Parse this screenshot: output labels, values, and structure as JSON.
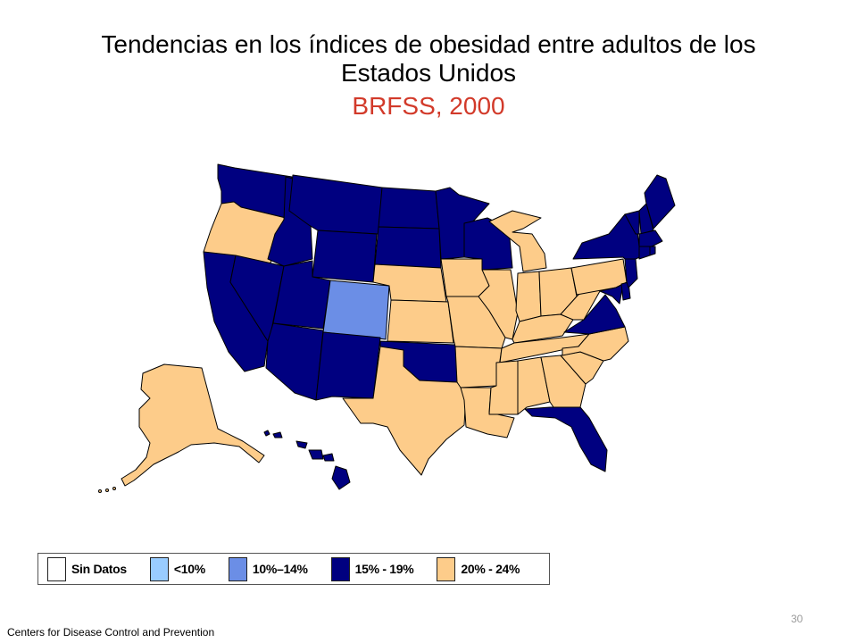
{
  "title": {
    "line1": "Tendencias en los índices de obesidad entre adultos de los",
    "line2": "Estados Unidos",
    "subtitle": "BRFSS, 2000"
  },
  "colors": {
    "no_data": "#ffffff",
    "lt10": "#99ccff",
    "c10_14": "#6b8ee6",
    "c15_19": "#000080",
    "c20_24": "#fdcc8a",
    "subtitle": "#d23a2a",
    "state_border": "#000000"
  },
  "legend": [
    {
      "label": "Sin Datos",
      "category": "no_data"
    },
    {
      "label": "<10%",
      "category": "lt10"
    },
    {
      "label": "10%–14%",
      "category": "c10_14"
    },
    {
      "label": "15% - 19%",
      "category": "c15_19"
    },
    {
      "label": "20% - 24%",
      "category": "c20_24"
    }
  ],
  "states": [
    {
      "code": "WA",
      "category": "c15_19"
    },
    {
      "code": "OR",
      "category": "c20_24"
    },
    {
      "code": "CA",
      "category": "c15_19"
    },
    {
      "code": "NV",
      "category": "c15_19"
    },
    {
      "code": "ID",
      "category": "c15_19"
    },
    {
      "code": "MT",
      "category": "c15_19"
    },
    {
      "code": "WY",
      "category": "c15_19"
    },
    {
      "code": "UT",
      "category": "c15_19"
    },
    {
      "code": "AZ",
      "category": "c15_19"
    },
    {
      "code": "CO",
      "category": "c10_14"
    },
    {
      "code": "NM",
      "category": "c15_19"
    },
    {
      "code": "ND",
      "category": "c15_19"
    },
    {
      "code": "SD",
      "category": "c15_19"
    },
    {
      "code": "NE",
      "category": "c20_24"
    },
    {
      "code": "KS",
      "category": "c20_24"
    },
    {
      "code": "OK",
      "category": "c15_19"
    },
    {
      "code": "TX",
      "category": "c20_24"
    },
    {
      "code": "MN",
      "category": "c15_19"
    },
    {
      "code": "IA",
      "category": "c20_24"
    },
    {
      "code": "MO",
      "category": "c20_24"
    },
    {
      "code": "AR",
      "category": "c20_24"
    },
    {
      "code": "LA",
      "category": "c20_24"
    },
    {
      "code": "WI",
      "category": "c15_19"
    },
    {
      "code": "IL",
      "category": "c20_24"
    },
    {
      "code": "MI",
      "category": "c20_24"
    },
    {
      "code": "IN",
      "category": "c20_24"
    },
    {
      "code": "OH",
      "category": "c20_24"
    },
    {
      "code": "KY",
      "category": "c20_24"
    },
    {
      "code": "TN",
      "category": "c20_24"
    },
    {
      "code": "MS",
      "category": "c20_24"
    },
    {
      "code": "AL",
      "category": "c20_24"
    },
    {
      "code": "GA",
      "category": "c20_24"
    },
    {
      "code": "FL",
      "category": "c15_19"
    },
    {
      "code": "SC",
      "category": "c20_24"
    },
    {
      "code": "NC",
      "category": "c20_24"
    },
    {
      "code": "VA",
      "category": "c15_19"
    },
    {
      "code": "WV",
      "category": "c20_24"
    },
    {
      "code": "PA",
      "category": "c20_24"
    },
    {
      "code": "NY",
      "category": "c15_19"
    },
    {
      "code": "NJ",
      "category": "c15_19"
    },
    {
      "code": "DE",
      "category": "c15_19"
    },
    {
      "code": "MD",
      "category": "c15_19"
    },
    {
      "code": "VT",
      "category": "c15_19"
    },
    {
      "code": "NH",
      "category": "c15_19"
    },
    {
      "code": "ME",
      "category": "c15_19"
    },
    {
      "code": "MA",
      "category": "c15_19"
    },
    {
      "code": "CT",
      "category": "c15_19"
    },
    {
      "code": "RI",
      "category": "c15_19"
    },
    {
      "code": "AK",
      "category": "c20_24"
    },
    {
      "code": "HI",
      "category": "c15_19"
    }
  ],
  "footer": "Centers  for Disease Control and Prevention",
  "page_number": "30"
}
